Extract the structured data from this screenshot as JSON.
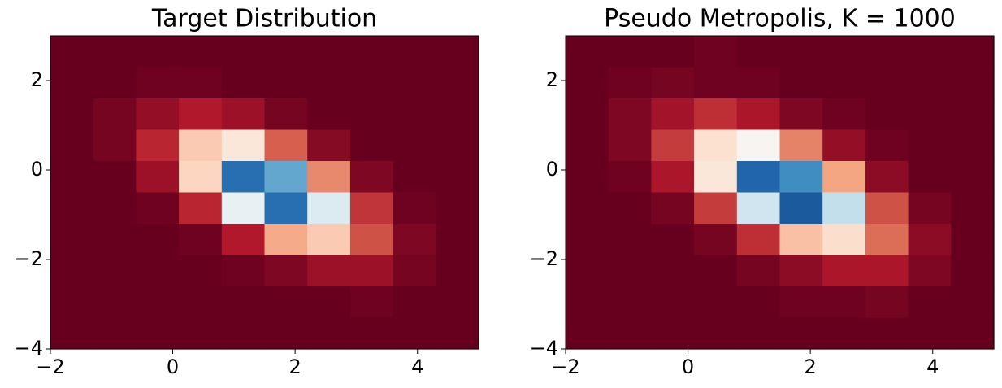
{
  "chart_data": [
    {
      "type": "heatmap",
      "title": "Target Distribution",
      "xlim": [
        -2,
        5
      ],
      "ylim": [
        -4,
        3
      ],
      "xticks": [
        {
          "value": -2,
          "label": "−2"
        },
        0,
        2,
        4
      ],
      "yticks": [
        2,
        0,
        {
          "value": -2,
          "label": "−2"
        },
        {
          "value": -4,
          "label": "−4"
        }
      ],
      "zlim": [
        0,
        1
      ],
      "colors": [
        "#67001f",
        "#b2182b",
        "#d6604d",
        "#f4a582",
        "#fddbc7",
        "#f7f7f7",
        "#d1e5f0",
        "#92c5de",
        "#4393c3",
        "#2166ac",
        "#053061"
      ],
      "z": [
        [
          0,
          0,
          0,
          0,
          0,
          0,
          0,
          0,
          0,
          0
        ],
        [
          0,
          0,
          0.01,
          0.01,
          0,
          0,
          0,
          0,
          0,
          0
        ],
        [
          0,
          0.02,
          0.06,
          0.1,
          0.07,
          0.02,
          0,
          0,
          0,
          0
        ],
        [
          0,
          0.02,
          0.12,
          0.37,
          0.44,
          0.2,
          0.04,
          0,
          0,
          0
        ],
        [
          0,
          0,
          0.07,
          0.39,
          0.88,
          0.76,
          0.26,
          0.03,
          0,
          0
        ],
        [
          0,
          0,
          0.01,
          0.12,
          0.54,
          0.88,
          0.57,
          0.14,
          0.01,
          0
        ],
        [
          0,
          0,
          0,
          0.01,
          0.1,
          0.31,
          0.37,
          0.18,
          0.03,
          0
        ],
        [
          0,
          0,
          0,
          0,
          0.01,
          0.03,
          0.07,
          0.07,
          0.02,
          0
        ],
        [
          0,
          0,
          0,
          0,
          0,
          0,
          0,
          0.01,
          0,
          0
        ],
        [
          0,
          0,
          0,
          0,
          0,
          0,
          0,
          0,
          0,
          0
        ]
      ]
    },
    {
      "type": "heatmap",
      "title": "Pseudo Metropolis, K = 1000",
      "xlim": [
        -2,
        5
      ],
      "ylim": [
        -4,
        3
      ],
      "xticks": [
        {
          "value": -2,
          "label": "−2"
        },
        0,
        2,
        4
      ],
      "yticks": [
        2,
        0,
        {
          "value": -2,
          "label": "−2"
        },
        {
          "value": -4,
          "label": "−4"
        }
      ],
      "zlim": [
        0,
        1
      ],
      "colors": [
        "#67001f",
        "#b2182b",
        "#d6604d",
        "#f4a582",
        "#fddbc7",
        "#f7f7f7",
        "#d1e5f0",
        "#92c5de",
        "#4393c3",
        "#2166ac",
        "#053061"
      ],
      "z": [
        [
          0,
          0,
          0,
          0.01,
          0,
          0,
          0,
          0,
          0,
          0
        ],
        [
          0,
          0.01,
          0.02,
          0.01,
          0.01,
          0,
          0,
          0,
          0,
          0
        ],
        [
          0,
          0.03,
          0.08,
          0.13,
          0.09,
          0.03,
          0.01,
          0,
          0,
          0
        ],
        [
          0,
          0.03,
          0.15,
          0.42,
          0.49,
          0.25,
          0.06,
          0.01,
          0,
          0
        ],
        [
          0,
          0.01,
          0.09,
          0.44,
          0.9,
          0.81,
          0.3,
          0.05,
          0,
          0
        ],
        [
          0,
          0,
          0.02,
          0.15,
          0.6,
          0.92,
          0.62,
          0.18,
          0.02,
          0
        ],
        [
          0,
          0,
          0,
          0.02,
          0.13,
          0.35,
          0.41,
          0.22,
          0.05,
          0
        ],
        [
          0,
          0,
          0,
          0,
          0.02,
          0.05,
          0.09,
          0.09,
          0.03,
          0
        ],
        [
          0,
          0,
          0,
          0,
          0,
          0.01,
          0.01,
          0.02,
          0,
          0
        ],
        [
          0,
          0,
          0,
          0,
          0,
          0,
          0,
          0,
          0,
          0
        ]
      ]
    }
  ]
}
